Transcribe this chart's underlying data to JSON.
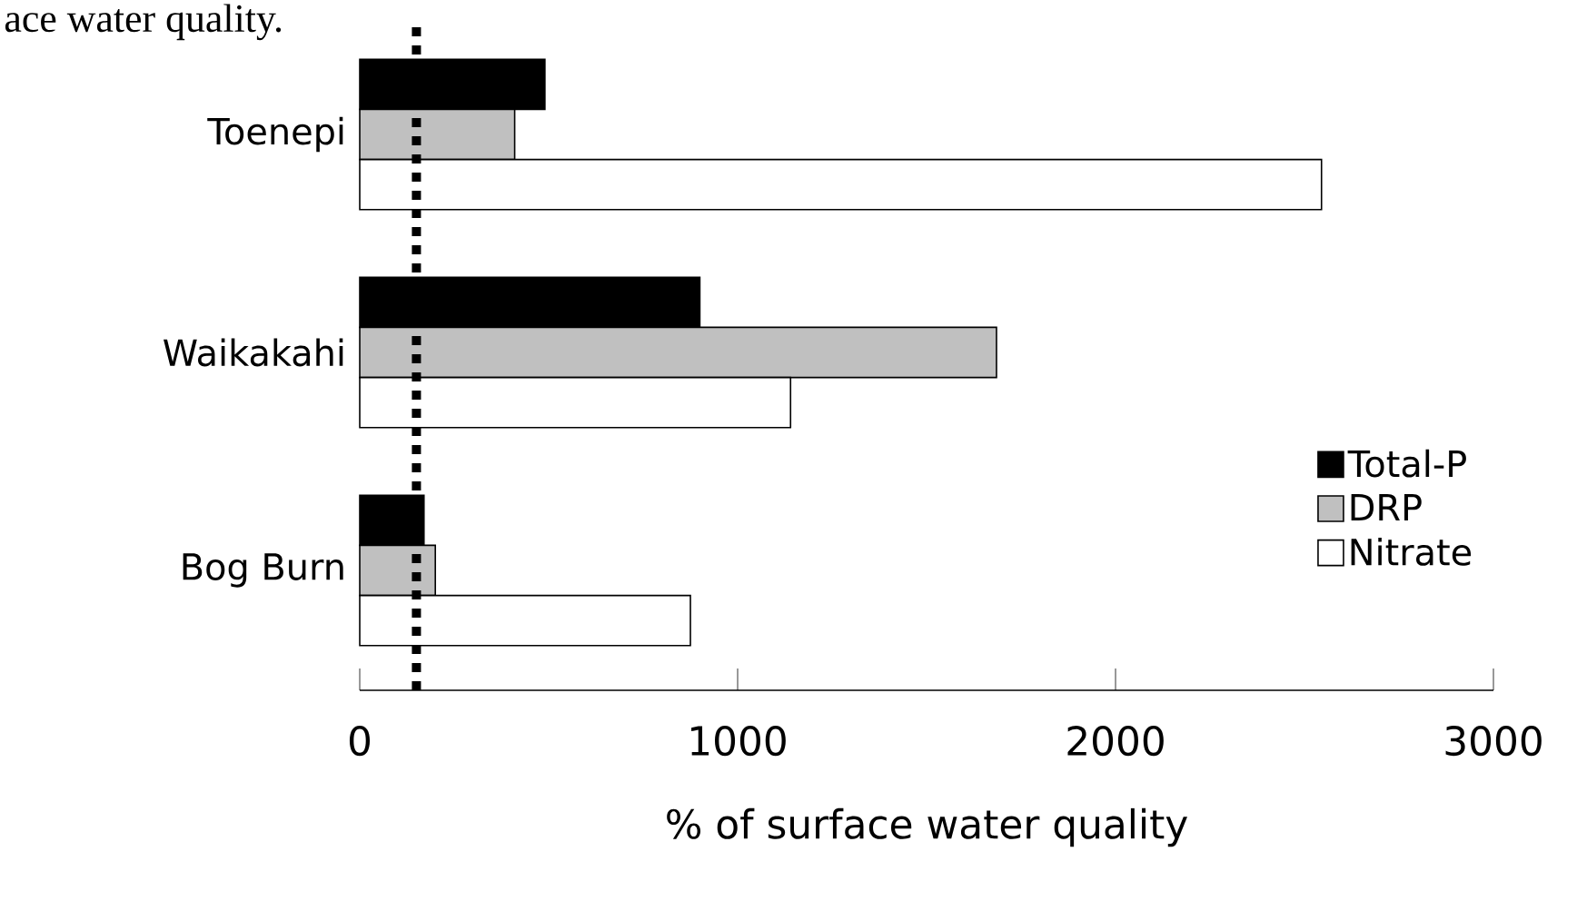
{
  "chart_data": {
    "type": "bar",
    "orientation": "horizontal",
    "categories": [
      "Toenepi",
      "Waikakahi",
      "Bog Burn"
    ],
    "series": [
      {
        "name": "Total-P",
        "color": "#000000",
        "values": [
          490,
          900,
          170
        ]
      },
      {
        "name": "DRP",
        "color": "#c0c0c0",
        "values": [
          410,
          1685,
          200
        ]
      },
      {
        "name": "Nitrate",
        "color": "#ffffff",
        "values": [
          2545,
          1140,
          875
        ]
      }
    ],
    "xlabel": "% of surface water quality",
    "xlim": [
      0,
      3000
    ],
    "xticks": [
      0,
      1000,
      2000,
      3000
    ],
    "legend": "bottom right",
    "grid": false,
    "ref_lines": [
      {
        "axis": "x",
        "value": 150,
        "line_style": "dotted",
        "color": "#000000"
      }
    ],
    "annotations": [
      "ace water quality."
    ]
  }
}
